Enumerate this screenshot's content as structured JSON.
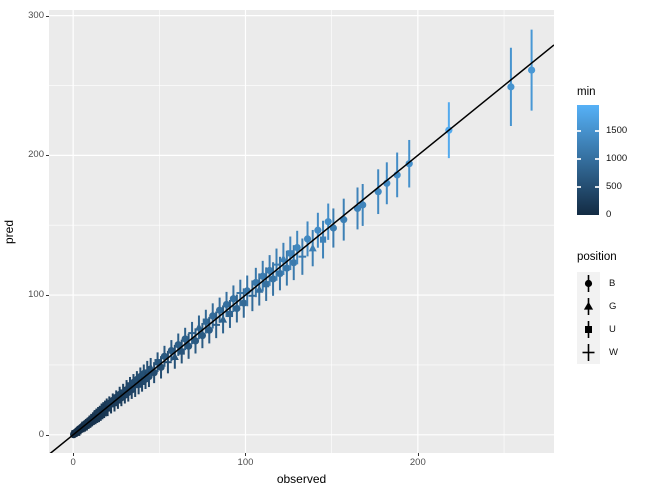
{
  "colors": {
    "panel_bg": "#EBEBEB",
    "grid": "#FFFFFF",
    "tick_text": "#4D4D4D",
    "key_bg": "#F2F2F2",
    "identity_line": "#000000"
  },
  "chart_data": {
    "type": "scatter",
    "subtype": "pointrange",
    "title": "",
    "xlabel": "observed",
    "ylabel": "pred",
    "xlim": [
      -14,
      279
    ],
    "ylim": [
      -13,
      304
    ],
    "x_ticks": [
      0,
      100,
      200
    ],
    "y_ticks": [
      0,
      100,
      200,
      300
    ],
    "x_minor": [
      50,
      150,
      250
    ],
    "y_minor": [
      50,
      150,
      250
    ],
    "grid": true,
    "identity_line": true,
    "legend_position": "right",
    "color_scale": {
      "title": "min",
      "low": "#132B43",
      "high": "#56B1F7",
      "point_domain": [
        0,
        2000
      ],
      "bar_domain": [
        0,
        1965
      ],
      "ticks": [
        {
          "value": 1500,
          "label": "1500"
        },
        {
          "value": 1000,
          "label": "1000"
        },
        {
          "value": 500,
          "label": "500"
        },
        {
          "value": 0,
          "label": "0"
        }
      ]
    },
    "shape_legend": {
      "title": "position",
      "items": [
        {
          "label": "B",
          "shape": "circle"
        },
        {
          "label": "G",
          "shape": "triangle"
        },
        {
          "label": "U",
          "shape": "square"
        },
        {
          "label": "W",
          "shape": "plus"
        }
      ]
    },
    "points_format": [
      "observed",
      "pred",
      "err_half_range",
      "min",
      "position"
    ],
    "points": [
      [
        0.3,
        0.1,
        1.5,
        5,
        "B"
      ],
      [
        0.8,
        1.2,
        1.8,
        12,
        "U"
      ],
      [
        1.2,
        0.9,
        2,
        18,
        "B"
      ],
      [
        1.7,
        2.2,
        1.6,
        22,
        "W"
      ],
      [
        2.2,
        1.8,
        2.2,
        28,
        "B"
      ],
      [
        2.8,
        3.3,
        1.8,
        33,
        "G"
      ],
      [
        3.2,
        2.7,
        2.4,
        38,
        "B"
      ],
      [
        3.8,
        4.4,
        2,
        44,
        "B"
      ],
      [
        4.2,
        3.7,
        2.6,
        48,
        "W"
      ],
      [
        4.8,
        5.4,
        2,
        52,
        "B"
      ],
      [
        5.2,
        4.6,
        2.8,
        58,
        "G"
      ],
      [
        5.8,
        6.5,
        2.2,
        62,
        "B"
      ],
      [
        6.2,
        5.5,
        3,
        68,
        "U"
      ],
      [
        6.8,
        7.6,
        2.4,
        72,
        "B"
      ],
      [
        7.2,
        6.4,
        3,
        78,
        "B"
      ],
      [
        0.5,
        0.8,
        2,
        10,
        "B"
      ],
      [
        1,
        0.6,
        2.5,
        20,
        "W"
      ],
      [
        1.5,
        1.9,
        2,
        35,
        "B"
      ],
      [
        2,
        1.5,
        3,
        15,
        "G"
      ],
      [
        2.5,
        3,
        2.5,
        55,
        "B"
      ],
      [
        3,
        2.4,
        3,
        25,
        "U"
      ],
      [
        3.5,
        4.1,
        2,
        65,
        "B"
      ],
      [
        4,
        3.6,
        3,
        30,
        "B"
      ],
      [
        4.5,
        5.2,
        2.5,
        75,
        "W"
      ],
      [
        5,
        4.4,
        3,
        45,
        "B"
      ],
      [
        5.5,
        6,
        3,
        95,
        "G"
      ],
      [
        6,
        5.3,
        3.5,
        50,
        "B"
      ],
      [
        6.5,
        7.2,
        3,
        105,
        "U"
      ],
      [
        7,
        6.2,
        3.5,
        60,
        "B"
      ],
      [
        7.5,
        8.3,
        3,
        115,
        "B"
      ],
      [
        8,
        7.1,
        4,
        70,
        "W"
      ],
      [
        8.5,
        9.4,
        3,
        125,
        "B"
      ],
      [
        9,
        8.2,
        4,
        85,
        "G"
      ],
      [
        9.5,
        10.3,
        3.5,
        140,
        "B"
      ],
      [
        10,
        9,
        4,
        90,
        "U"
      ],
      [
        10.5,
        11.5,
        3.5,
        150,
        "B"
      ],
      [
        11,
        10.2,
        4,
        100,
        "B"
      ],
      [
        11.5,
        12.6,
        3.5,
        165,
        "W"
      ],
      [
        12,
        11,
        4,
        110,
        "B"
      ],
      [
        12.5,
        13.7,
        4,
        180,
        "G"
      ],
      [
        13,
        12.1,
        4.5,
        120,
        "B"
      ],
      [
        13.5,
        14.8,
        4,
        195,
        "U"
      ],
      [
        14,
        13,
        4.5,
        130,
        "B"
      ],
      [
        14.5,
        15.9,
        4,
        205,
        "B"
      ],
      [
        15,
        14.1,
        5,
        135,
        "W"
      ],
      [
        15.5,
        16.8,
        4,
        215,
        "B"
      ],
      [
        16,
        15,
        5,
        145,
        "G"
      ],
      [
        16.5,
        17.9,
        4.5,
        230,
        "B"
      ],
      [
        17,
        16.1,
        5,
        155,
        "U"
      ],
      [
        17.5,
        18.9,
        4.5,
        240,
        "B"
      ],
      [
        18,
        17,
        5,
        160,
        "B"
      ],
      [
        18.5,
        20,
        4.5,
        250,
        "W"
      ],
      [
        19,
        18.2,
        5,
        175,
        "B"
      ],
      [
        19.5,
        21,
        5,
        260,
        "G"
      ],
      [
        20,
        18.9,
        5.5,
        185,
        "U"
      ],
      [
        21,
        22.5,
        5,
        275,
        "B"
      ],
      [
        22,
        20.8,
        5.5,
        220,
        "W"
      ],
      [
        23,
        24.6,
        5,
        300,
        "B"
      ],
      [
        24,
        22.7,
        6,
        235,
        "G"
      ],
      [
        25,
        26.8,
        5,
        330,
        "B"
      ],
      [
        26,
        24.6,
        6,
        255,
        "U"
      ],
      [
        27,
        28.9,
        5.5,
        355,
        "B"
      ],
      [
        28,
        26.5,
        6,
        280,
        "B"
      ],
      [
        29,
        31,
        5.5,
        385,
        "W"
      ],
      [
        30,
        28.4,
        6,
        305,
        "B"
      ],
      [
        31,
        33.2,
        6,
        410,
        "G"
      ],
      [
        32,
        30.3,
        6.5,
        320,
        "B"
      ],
      [
        33,
        35.4,
        6,
        440,
        "U"
      ],
      [
        34,
        32.2,
        6.5,
        350,
        "B"
      ],
      [
        35,
        37.5,
        6,
        465,
        "B"
      ],
      [
        36,
        34.1,
        7,
        370,
        "W"
      ],
      [
        37,
        39.6,
        6,
        490,
        "B"
      ],
      [
        38,
        36,
        7,
        395,
        "G"
      ],
      [
        39,
        41.7,
        6.5,
        520,
        "B"
      ],
      [
        40,
        37.9,
        7,
        420,
        "U"
      ],
      [
        41,
        43.8,
        6.5,
        545,
        "B"
      ],
      [
        42,
        39.8,
        7,
        445,
        "B"
      ],
      [
        43,
        45.9,
        7,
        570,
        "W"
      ],
      [
        44,
        41.7,
        7.5,
        470,
        "B"
      ],
      [
        45,
        48,
        7,
        600,
        "G"
      ],
      [
        47,
        44.5,
        7.5,
        495,
        "B"
      ],
      [
        49,
        52,
        7,
        640,
        "U"
      ],
      [
        51,
        48.3,
        8,
        525,
        "B"
      ],
      [
        53,
        56.2,
        7.5,
        680,
        "B"
      ],
      [
        55,
        52,
        8,
        555,
        "W"
      ],
      [
        57,
        60.3,
        7.5,
        720,
        "B"
      ],
      [
        59,
        55.8,
        8.5,
        585,
        "G"
      ],
      [
        61,
        64.5,
        8,
        760,
        "B"
      ],
      [
        63,
        59.6,
        8.5,
        615,
        "U"
      ],
      [
        65,
        68.6,
        8,
        800,
        "B"
      ],
      [
        67,
        63.4,
        9,
        650,
        "B"
      ],
      [
        69,
        72.8,
        8,
        840,
        "W"
      ],
      [
        71,
        67.2,
        9,
        685,
        "B"
      ],
      [
        73,
        76.9,
        8.5,
        880,
        "G"
      ],
      [
        75,
        71,
        9,
        715,
        "B"
      ],
      [
        77,
        81,
        8.5,
        915,
        "U"
      ],
      [
        79,
        74.9,
        9.5,
        750,
        "B"
      ],
      [
        81,
        85.1,
        9,
        950,
        "B"
      ],
      [
        83,
        78.7,
        9.5,
        785,
        "W"
      ],
      [
        85,
        89.2,
        9,
        985,
        "B"
      ],
      [
        87,
        82.6,
        10,
        820,
        "G"
      ],
      [
        89,
        93.3,
        9,
        1020,
        "B"
      ],
      [
        91,
        86.5,
        10,
        855,
        "U"
      ],
      [
        93,
        97.4,
        9.5,
        1055,
        "B"
      ],
      [
        95,
        90.4,
        10,
        890,
        "B"
      ],
      [
        97,
        101.5,
        9.5,
        1090,
        "W"
      ],
      [
        99,
        94.3,
        10.5,
        925,
        "B"
      ],
      [
        101,
        103,
        11,
        1125,
        "B"
      ],
      [
        104,
        99.5,
        11,
        960,
        "W"
      ],
      [
        106,
        109,
        10.5,
        1160,
        "B"
      ],
      [
        108,
        104,
        11.5,
        1000,
        "G"
      ],
      [
        110,
        113.5,
        11,
        1195,
        "B"
      ],
      [
        112,
        107.8,
        12,
        1035,
        "U"
      ],
      [
        114,
        117.6,
        11,
        1230,
        "B"
      ],
      [
        116,
        111.5,
        12,
        1070,
        "B"
      ],
      [
        118,
        121.8,
        11.5,
        1265,
        "W"
      ],
      [
        120,
        115.4,
        12,
        1105,
        "B"
      ],
      [
        122,
        125.9,
        11.5,
        1300,
        "G"
      ],
      [
        124,
        119.3,
        12.5,
        1145,
        "B"
      ],
      [
        126,
        129.9,
        12,
        1335,
        "U"
      ],
      [
        128,
        123.2,
        12.5,
        1180,
        "B"
      ],
      [
        130,
        134,
        12,
        1370,
        "B"
      ],
      [
        133,
        127.5,
        13,
        1215,
        "W"
      ],
      [
        136,
        140.2,
        12.5,
        1405,
        "B"
      ],
      [
        139,
        133.6,
        13,
        1255,
        "G"
      ],
      [
        142,
        146.4,
        12.5,
        1440,
        "B"
      ],
      [
        145,
        139.7,
        13.5,
        1295,
        "U"
      ],
      [
        148,
        152.5,
        13,
        1475,
        "B"
      ],
      [
        151,
        148,
        14,
        1220,
        "B"
      ],
      [
        157,
        154,
        15,
        1265,
        "B"
      ],
      [
        165,
        162,
        15,
        1310,
        "B"
      ],
      [
        168,
        164.5,
        15,
        1340,
        "B"
      ],
      [
        177,
        174,
        16,
        1400,
        "B"
      ],
      [
        182,
        180,
        15,
        1430,
        "B"
      ],
      [
        188,
        186,
        16,
        1470,
        "B"
      ],
      [
        195,
        194,
        17,
        1520,
        "B"
      ],
      [
        218,
        218,
        20,
        1900,
        "B"
      ],
      [
        254,
        249,
        28,
        1560,
        "B"
      ],
      [
        266,
        261,
        29,
        1620,
        "B"
      ]
    ]
  }
}
